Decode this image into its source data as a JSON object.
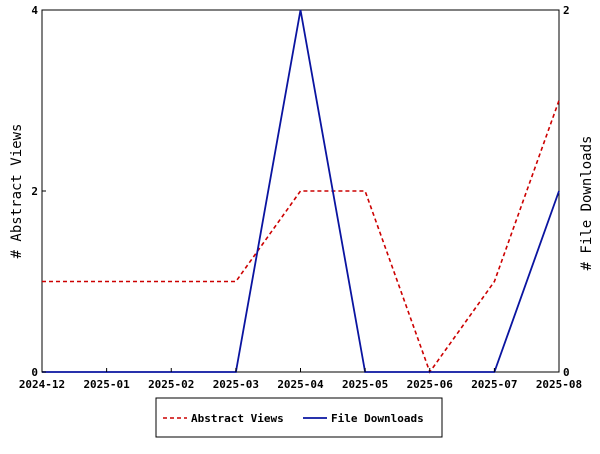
{
  "chart_data": {
    "type": "line",
    "x": [
      "2024-12",
      "2025-01",
      "2025-02",
      "2025-03",
      "2025-04",
      "2025-05",
      "2025-06",
      "2025-07",
      "2025-08"
    ],
    "x_tick_labels": [
      "2024-12",
      "2025-01",
      "2025-02",
      "2025-03",
      "2025-04",
      "2025-05",
      "2025-06",
      "2025-07",
      "2025-08"
    ],
    "ylabel_left": "# Abstract Views",
    "ylabel_right": "# File Downloads",
    "ylim_left": [
      0,
      4
    ],
    "ylim_right": [
      0,
      2
    ],
    "y_ticks_left": [
      "0",
      "2",
      "4"
    ],
    "y_ticks_right": [
      "0",
      "2"
    ],
    "grid": false,
    "legend_position": "bottom-center",
    "series": [
      {
        "name": "Abstract Views",
        "axis": "left",
        "color": "#cc0000",
        "dash": "dashed",
        "values": [
          1,
          1,
          1,
          1,
          2,
          2,
          0,
          1,
          3
        ]
      },
      {
        "name": "File Downloads",
        "axis": "right",
        "color": "#0a14a0",
        "dash": "solid",
        "values": [
          0,
          0,
          0,
          0,
          2,
          0,
          0,
          0,
          1
        ]
      }
    ]
  }
}
